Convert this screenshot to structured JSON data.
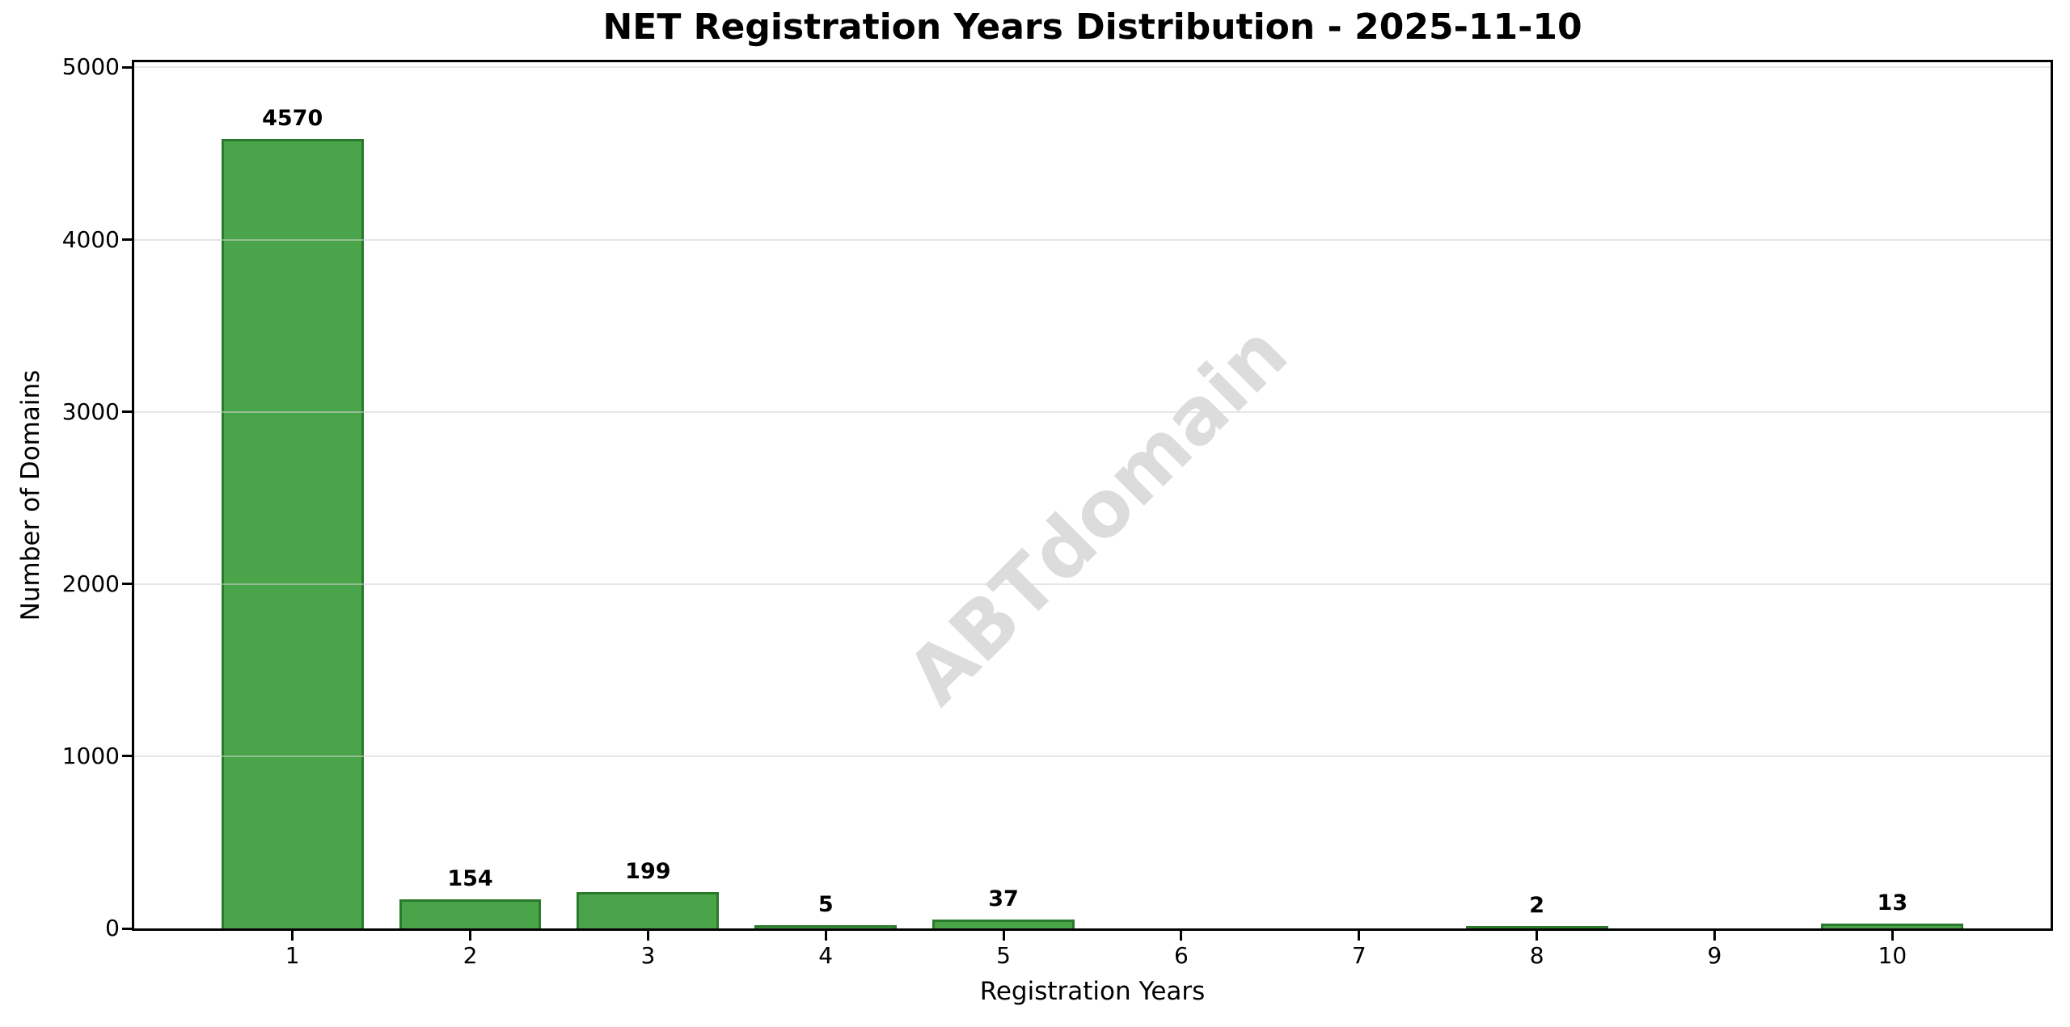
{
  "chart_data": {
    "type": "bar",
    "title": "NET Registration Years Distribution - 2025-11-10",
    "xlabel": "Registration Years",
    "ylabel": "Number of Domains",
    "categories": [
      "1",
      "2",
      "3",
      "4",
      "5",
      "6",
      "7",
      "8",
      "9",
      "10"
    ],
    "values": [
      4570,
      154,
      199,
      5,
      37,
      0,
      0,
      2,
      0,
      13
    ],
    "bar_labels": [
      "4570",
      "154",
      "199",
      "5",
      "37",
      "",
      "",
      "2",
      "",
      "13"
    ],
    "ylim": [
      0,
      5000
    ],
    "yticks": [
      "0",
      "1000",
      "2000",
      "3000",
      "4000",
      "5000"
    ],
    "ytick_values": [
      0,
      1000,
      2000,
      3000,
      4000,
      5000
    ],
    "grid": "horizontal-only",
    "legend": "none",
    "bar_color": "#4aa54a",
    "bar_edge_color": "#2a7a2e",
    "grid_color": "#d2d2d2",
    "axis_color": "#000000",
    "watermark": "ABTdomain",
    "watermark_color": "#dcdcdc"
  }
}
